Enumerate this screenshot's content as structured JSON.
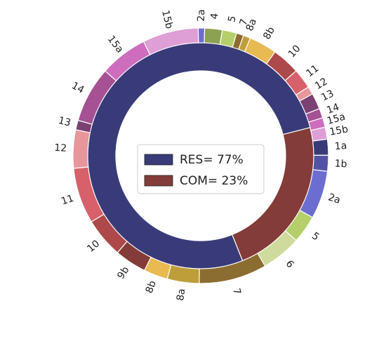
{
  "chart_data": {
    "type": "pie",
    "subtype": "nested donut",
    "title": "",
    "inner_ring": [
      {
        "label": "RES",
        "value": 77,
        "color": "#393b79"
      },
      {
        "label": "COM",
        "value": 23,
        "color": "#843c39"
      }
    ],
    "legend": {
      "placement": "center",
      "entries": [
        "RES= 77%",
        "COM= 23%"
      ]
    },
    "outer_ring": [
      {
        "label": "1a",
        "value": 2.0,
        "color": "#393b79"
      },
      {
        "label": "1b",
        "value": 2.0,
        "color": "#5254a3"
      },
      {
        "label": "2a",
        "value": 6.0,
        "color": "#6b6ecf"
      },
      {
        "label": "5",
        "value": 3.5,
        "color": "#b5cf6b"
      },
      {
        "label": "6",
        "value": 5.0,
        "color": "#cedb9c"
      },
      {
        "label": "7",
        "value": 8.5,
        "color": "#8c6d31"
      },
      {
        "label": "8a",
        "value": 4.0,
        "color": "#bd9e39"
      },
      {
        "label": "8b",
        "value": 3.0,
        "color": "#e7ba52"
      },
      {
        "label": "9b",
        "value": 4.0,
        "color": "#843c39"
      },
      {
        "label": "10",
        "value": 5.0,
        "color": "#ad494a"
      },
      {
        "label": "11",
        "value": 7.0,
        "color": "#d6616b"
      },
      {
        "label": "12",
        "value": 4.8,
        "color": "#e7969c"
      },
      {
        "label": "13",
        "value": 1.2,
        "color": "#7b4173"
      },
      {
        "label": "14",
        "value": 7.0,
        "color": "#a55194"
      },
      {
        "label": "15a",
        "value": 6.0,
        "color": "#ce6dbd"
      },
      {
        "label": "15b",
        "value": 7.0,
        "color": "#de9ed6"
      },
      {
        "label": "2a",
        "value": 0.8,
        "color": "#6b6ecf"
      },
      {
        "label": "4",
        "value": 2.2,
        "color": "#8ca252"
      },
      {
        "label": "5",
        "value": 1.8,
        "color": "#b5cf6b"
      },
      {
        "label": "7",
        "value": 0.9,
        "color": "#8c6d31"
      },
      {
        "label": "8a",
        "value": 0.9,
        "color": "#bd9e39"
      },
      {
        "label": "8b",
        "value": 3.5,
        "color": "#e7ba52"
      },
      {
        "label": "10",
        "value": 3.5,
        "color": "#ad494a"
      },
      {
        "label": "11",
        "value": 2.5,
        "color": "#d6616b"
      },
      {
        "label": "12",
        "value": 1.0,
        "color": "#e7969c"
      },
      {
        "label": "13",
        "value": 2.0,
        "color": "#7b4173"
      },
      {
        "label": "14",
        "value": 1.2,
        "color": "#a55194"
      },
      {
        "label": "15a",
        "value": 1.2,
        "color": "#ce6dbd"
      },
      {
        "label": "15b",
        "value": 1.5,
        "color": "#de9ed6"
      }
    ]
  }
}
